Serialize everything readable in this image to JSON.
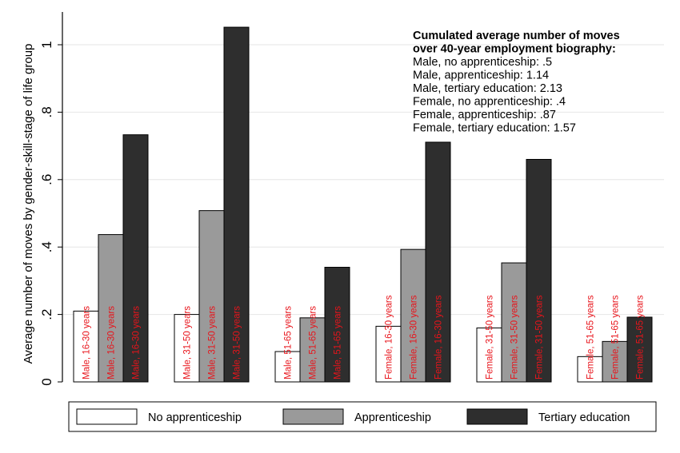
{
  "chart_data": {
    "type": "bar",
    "title": "",
    "xlabel": "",
    "ylabel": "Average number of moves by gender-skill-stage of life group",
    "ylim": [
      0,
      1.1
    ],
    "yticks": [
      0,
      0.2,
      0.4,
      0.6,
      0.8,
      1
    ],
    "ytick_labels": [
      "0",
      ".2",
      ".4",
      ".6",
      ".8",
      "1"
    ],
    "grid": true,
    "legend_position": "bottom",
    "groups": [
      "Male, 16-30 years",
      "Male, 31-50 years",
      "Male, 51-65 years",
      "Female, 16-30 years",
      "Female, 31-50 years",
      "Female, 51-65 years"
    ],
    "series": [
      {
        "name": "No apprenticeship",
        "color": "#ffffff",
        "values": [
          0.21,
          0.2,
          0.09,
          0.165,
          0.16,
          0.075
        ],
        "labels": [
          "Male, 16-30 years",
          "Male, 31-50 years",
          "Male, 51-65 years",
          "Female, 16-30 years",
          "Female, 31-50 years",
          "Female, 51-65 years"
        ]
      },
      {
        "name": "Apprenticeship",
        "color": "#9a9a9a",
        "values": [
          0.437,
          0.508,
          0.19,
          0.393,
          0.353,
          0.12
        ],
        "labels": [
          "Male, 16-30 years",
          "Male, 31-50 years",
          "Male, 51-65 years",
          "Female, 16-30 years",
          "Female, 31-50 years",
          "Female, 51-65 years"
        ]
      },
      {
        "name": "Tertiary education",
        "color": "#2e2e2e",
        "values": [
          0.733,
          1.052,
          0.34,
          0.711,
          0.66,
          0.192
        ],
        "labels": [
          "Male, 16-30 years",
          "Male, 31-50 years",
          "Male, 51-65 years",
          "Female, 16-30 years",
          "Female, 31-50 years",
          "Female, 51-65 years"
        ]
      }
    ],
    "annotation": {
      "title_lines": [
        "Cumulated average number of moves",
        "over 40-year employment biography:"
      ],
      "lines": [
        "Male, no apprenticeship: .5",
        "Male, apprenticeship: 1.14",
        "Male, tertiary education: 2.13",
        "Female, no apprenticeship: .4",
        "Female, apprenticeship: .87",
        "Female, tertiary education: 1.57"
      ]
    }
  }
}
